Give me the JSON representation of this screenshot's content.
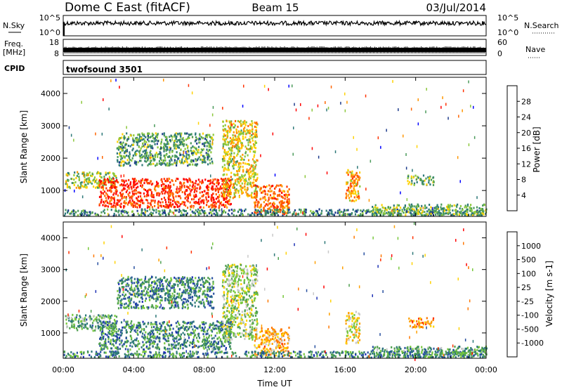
{
  "header": {
    "station": "Dome C East (fitACF)",
    "beam": "Beam 15",
    "date": "03/Jul/2014"
  },
  "sky_panel": {
    "label": "N.Sky",
    "right_label": "N.Search",
    "left_top": "10^5",
    "left_bottom": "10^0",
    "right_top": "10^5",
    "right_bottom": "10^0"
  },
  "freq_panel": {
    "label_line1": "Freq.",
    "label_line2": "[MHz]",
    "right_label": "Nave",
    "left_top": "18",
    "left_bottom": "8",
    "right_top": "60",
    "right_bottom": "0"
  },
  "cpid_panel": {
    "label": "CPID",
    "program": "twofsound 3501"
  },
  "chart_data": [
    {
      "type": "heatmap",
      "name": "power",
      "ylabel": "Slant Range [km]",
      "ylim": [
        200,
        4500
      ],
      "yticks": [
        1000,
        2000,
        3000,
        4000
      ],
      "xlim_hours": [
        0,
        24
      ],
      "colorbar": {
        "label": "Power [dB]",
        "ticks": [
          "28",
          "24",
          "20",
          "16",
          "12",
          "8",
          "4"
        ],
        "range": [
          0,
          32
        ],
        "colors": [
          "#0000ff",
          "#1e3c8c",
          "#2d7878",
          "#4a9a5a",
          "#8cc83c",
          "#ffd200",
          "#ff9600",
          "#ff6400",
          "#ff3200",
          "#ff0000"
        ]
      },
      "echo_regions": [
        {
          "t": [
            0.1,
            3.0
          ],
          "r": [
            1100,
            1600
          ],
          "level": 0.45
        },
        {
          "t": [
            2.0,
            9.5
          ],
          "r": [
            500,
            1400
          ],
          "level": 0.85
        },
        {
          "t": [
            3.0,
            8.5
          ],
          "r": [
            1800,
            2800
          ],
          "level": 0.35
        },
        {
          "t": [
            9.0,
            11.0
          ],
          "r": [
            800,
            3200
          ],
          "level": 0.55
        },
        {
          "t": [
            10.8,
            12.8
          ],
          "r": [
            300,
            1200
          ],
          "level": 0.75
        },
        {
          "t": [
            16.0,
            16.8
          ],
          "r": [
            700,
            1700
          ],
          "level": 0.65
        },
        {
          "t": [
            19.5,
            21.0
          ],
          "r": [
            1200,
            1500
          ],
          "level": 0.4
        },
        {
          "t": [
            0.0,
            24.0
          ],
          "r": [
            250,
            450
          ],
          "level": 0.3
        },
        {
          "t": [
            17.5,
            24.0
          ],
          "r": [
            250,
            600
          ],
          "level": 0.4
        }
      ]
    },
    {
      "type": "heatmap",
      "name": "velocity",
      "ylabel": "Slant Range [km]",
      "ylim": [
        200,
        4500
      ],
      "yticks": [
        1000,
        2000,
        3000,
        4000
      ],
      "xlabel": "Time UT",
      "xticks": [
        "00:00",
        "04:00",
        "08:00",
        "12:00",
        "16:00",
        "20:00",
        "00:00"
      ],
      "xlim_hours": [
        0,
        24
      ],
      "colorbar": {
        "label": "Velocity [m s-1]",
        "ticks": [
          "1000",
          "500",
          "100",
          "25",
          "-25",
          "-100",
          "-500",
          "-1000"
        ],
        "colors": [
          "#1e32b4",
          "#2850a0",
          "#2d7878",
          "#50a050",
          "#78c83c",
          "#c8c8c8",
          "#ffd200",
          "#ffa000",
          "#ff7800",
          "#ff3200",
          "#ff0000"
        ]
      },
      "echo_regions": [
        {
          "t": [
            0.1,
            3.0
          ],
          "r": [
            1100,
            1600
          ],
          "level": 0.35
        },
        {
          "t": [
            2.0,
            9.5
          ],
          "r": [
            500,
            1400
          ],
          "level": 0.25
        },
        {
          "t": [
            3.0,
            8.5
          ],
          "r": [
            1800,
            2800
          ],
          "level": 0.25
        },
        {
          "t": [
            9.0,
            11.0
          ],
          "r": [
            800,
            3200
          ],
          "level": 0.45
        },
        {
          "t": [
            10.8,
            12.8
          ],
          "r": [
            300,
            1200
          ],
          "level": 0.65
        },
        {
          "t": [
            16.0,
            16.8
          ],
          "r": [
            700,
            1700
          ],
          "level": 0.55
        },
        {
          "t": [
            19.5,
            21.0
          ],
          "r": [
            1200,
            1500
          ],
          "level": 0.7
        },
        {
          "t": [
            0.0,
            24.0
          ],
          "r": [
            250,
            450
          ],
          "level": 0.25
        },
        {
          "t": [
            17.5,
            24.0
          ],
          "r": [
            250,
            600
          ],
          "level": 0.3
        }
      ]
    }
  ]
}
